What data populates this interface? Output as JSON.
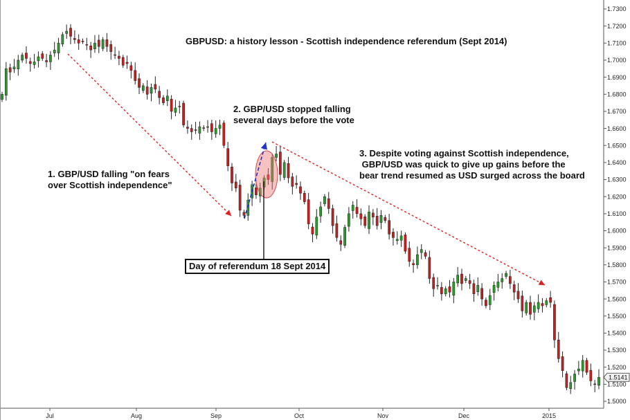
{
  "chart_data": {
    "type": "candlestick",
    "title": "GBPUSD: a history lesson - Scottish independence referendum (Sept 2014)",
    "ylim": [
      1.498,
      1.733
    ],
    "y_ticks": [
      "1.5000",
      "1.5100",
      "1.5200",
      "1.5300",
      "1.5400",
      "1.5500",
      "1.5600",
      "1.5700",
      "1.5800",
      "1.5900",
      "1.6000",
      "1.6100",
      "1.6200",
      "1.6300",
      "1.6400",
      "1.6500",
      "1.6600",
      "1.6700",
      "1.6800",
      "1.6900",
      "1.7000",
      "1.7100",
      "1.7200",
      "1.7300"
    ],
    "x_ticks": [
      "Jul",
      "Aug",
      "Sep",
      "Oct",
      "Nov",
      "Dec",
      "2015"
    ],
    "last_price_label": "1.5141",
    "up_color": "#2a9a2a",
    "down_color": "#c81e1e",
    "closes": [
      1.68,
      1.695,
      1.693,
      1.696,
      1.7,
      1.703,
      1.701,
      1.698,
      1.699,
      1.702,
      1.701,
      1.699,
      1.703,
      1.706,
      1.71,
      1.715,
      1.717,
      1.714,
      1.712,
      1.71,
      1.711,
      1.709,
      1.706,
      1.71,
      1.708,
      1.712,
      1.708,
      1.705,
      1.703,
      1.701,
      1.697,
      1.698,
      1.694,
      1.688,
      1.684,
      1.685,
      1.68,
      1.684,
      1.683,
      1.678,
      1.675,
      1.679,
      1.67,
      1.672,
      1.673,
      1.662,
      1.66,
      1.658,
      1.659,
      1.661,
      1.66,
      1.661,
      1.658,
      1.66,
      1.662,
      1.65,
      1.638,
      1.628,
      1.625,
      1.612,
      1.609,
      1.618,
      1.627,
      1.621,
      1.625,
      1.631,
      1.63,
      1.643,
      1.645,
      1.633,
      1.64,
      1.631,
      1.626,
      1.627,
      1.622,
      1.617,
      1.604,
      1.598,
      1.608,
      1.614,
      1.62,
      1.613,
      1.603,
      1.596,
      1.592,
      1.602,
      1.61,
      1.615,
      1.61,
      1.607,
      1.603,
      1.611,
      1.608,
      1.603,
      1.609,
      1.606,
      1.598,
      1.596,
      1.595,
      1.597,
      1.588,
      1.582,
      1.58,
      1.586,
      1.589,
      1.585,
      1.572,
      1.566,
      1.568,
      1.563,
      1.566,
      1.564,
      1.57,
      1.574,
      1.569,
      1.572,
      1.569,
      1.563,
      1.568,
      1.56,
      1.556,
      1.562,
      1.568,
      1.57,
      1.572,
      1.575,
      1.569,
      1.564,
      1.56,
      1.553,
      1.558,
      1.551,
      1.556,
      1.558,
      1.556,
      1.559,
      1.558,
      1.536,
      1.525,
      1.518,
      1.508,
      1.511,
      1.516,
      1.519,
      1.524,
      1.517,
      1.512,
      1.51,
      1.5141
    ],
    "annotations": [
      "1. GBP/USD falling \"on fears\nover Scottish independence\"",
      "2. GBP/USD stopped falling\nseveral days before the vote",
      "3. Despite voting against Scottish independence,\n GBP/USD was quick to give up gains before the\nbear trend resumed as USD surged across the board"
    ],
    "referendum_label": "Day of referendum 18 Sept 2014",
    "grid": false,
    "y_axis_side": "right"
  }
}
